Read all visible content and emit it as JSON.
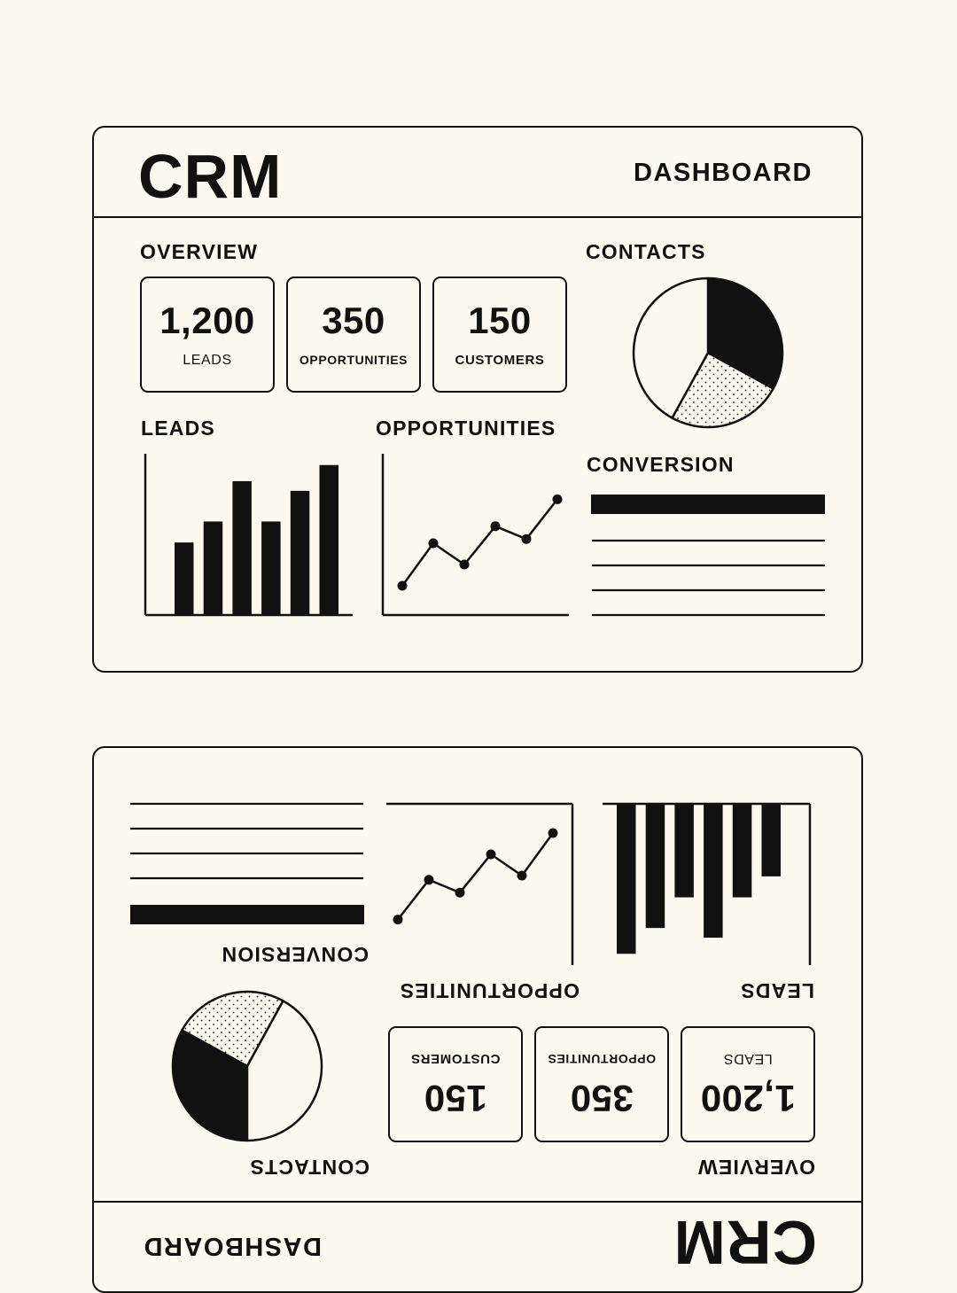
{
  "header": {
    "brand": "CRM",
    "title": "DASHBOARD"
  },
  "sections": {
    "overview": "OVERVIEW",
    "contacts": "CONTACTS",
    "leads": "LEADS",
    "opportunities": "OPPORTUNITIES",
    "conversion": "CONVERSION"
  },
  "stats": [
    {
      "value": "1,200",
      "label": "LEADS"
    },
    {
      "value": "350",
      "label": "OPPORTUNITIES"
    },
    {
      "value": "150",
      "label": "CUSTOMERS"
    }
  ],
  "chart_data": [
    {
      "type": "pie",
      "title": "CONTACTS",
      "values": [
        33,
        25,
        42
      ],
      "fills": [
        "solid",
        "dotted",
        "blank"
      ],
      "colors": [
        "#111111",
        "#fcf9ee",
        "#fcf9ee"
      ]
    },
    {
      "type": "bar",
      "title": "LEADS",
      "values": [
        4.5,
        5.8,
        8.3,
        5.8,
        7.7,
        9.3
      ],
      "ylim": [
        0,
        10
      ]
    },
    {
      "type": "line",
      "title": "OPPORTUNITIES",
      "values": [
        1,
        4,
        2.5,
        5.2,
        4.3,
        7.1
      ],
      "ylim": [
        0,
        10
      ]
    }
  ],
  "conversion": {
    "bars": 1,
    "lines": 4
  },
  "mirrored_copy": true,
  "colors": {
    "background": "#fcf9ee",
    "ink": "#111111"
  }
}
